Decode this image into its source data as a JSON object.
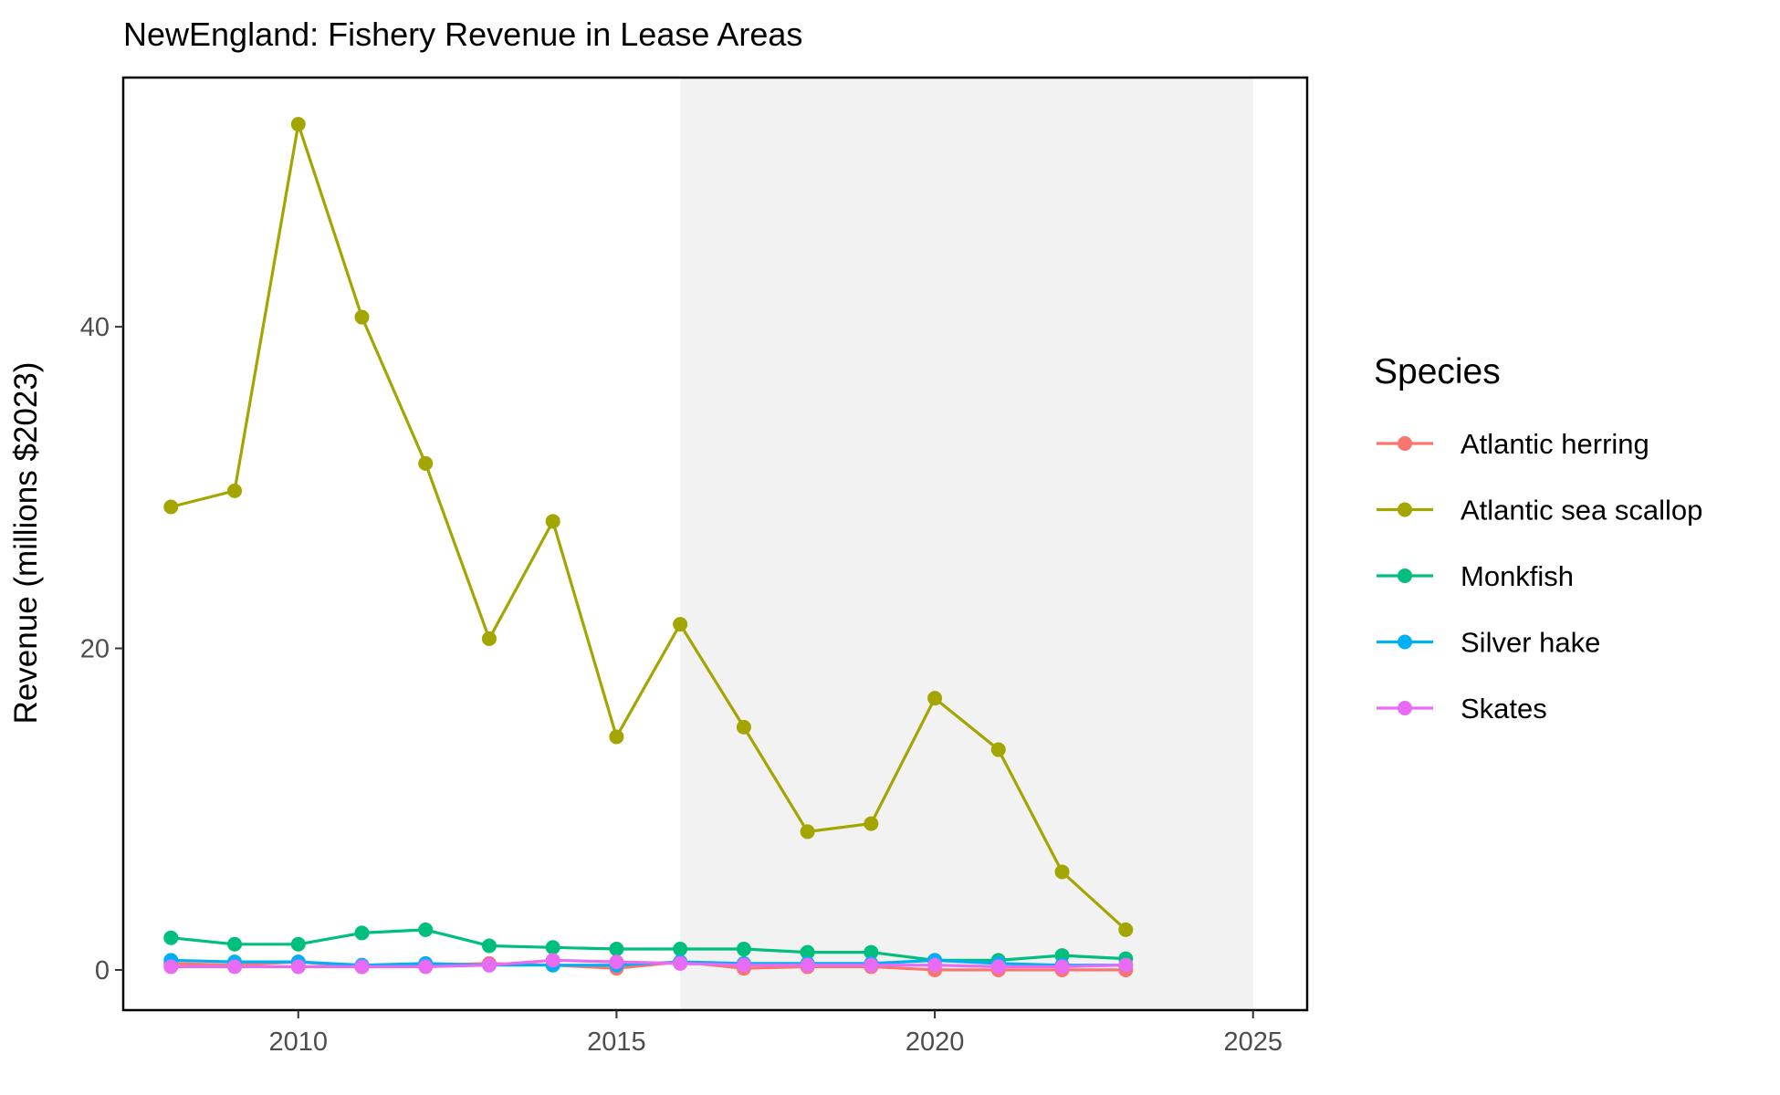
{
  "chart_data": {
    "type": "line",
    "title": "NewEngland: Fishery Revenue in Lease Areas",
    "xlabel": "",
    "ylabel": "Revenue (millions $2023)",
    "xlim": [
      2007.25,
      2025.85
    ],
    "ylim": [
      -2.5,
      55.5
    ],
    "x_ticks": [
      2010,
      2015,
      2020,
      2025
    ],
    "y_ticks": [
      0,
      20,
      40
    ],
    "shaded_region": {
      "x_start": 2016,
      "x_end": 2025,
      "color": "#f2f2f2"
    },
    "grid": false,
    "legend": {
      "title": "Species",
      "position": "right"
    },
    "x": [
      2008,
      2009,
      2010,
      2011,
      2012,
      2013,
      2014,
      2015,
      2016,
      2017,
      2018,
      2019,
      2020,
      2021,
      2022,
      2023
    ],
    "series": [
      {
        "name": "Atlantic herring",
        "color": "#F8766D",
        "values": [
          0.4,
          0.3,
          0.5,
          0.2,
          0.3,
          0.4,
          0.3,
          0.1,
          0.5,
          0.1,
          0.2,
          0.2,
          0.0,
          0.0,
          0.0,
          0.0
        ]
      },
      {
        "name": "Atlantic sea scallop",
        "color": "#A3A500",
        "values": [
          28.8,
          29.8,
          52.6,
          40.6,
          31.5,
          20.6,
          27.9,
          14.5,
          21.5,
          15.1,
          8.6,
          9.1,
          16.9,
          13.7,
          6.1,
          2.5
        ]
      },
      {
        "name": "Monkfish",
        "color": "#00BF7D",
        "values": [
          2.0,
          1.6,
          1.6,
          2.3,
          2.5,
          1.5,
          1.4,
          1.3,
          1.3,
          1.3,
          1.1,
          1.1,
          0.6,
          0.6,
          0.9,
          0.7
        ]
      },
      {
        "name": "Silver hake",
        "color": "#00B0F6",
        "values": [
          0.6,
          0.5,
          0.5,
          0.3,
          0.4,
          0.3,
          0.3,
          0.3,
          0.5,
          0.4,
          0.4,
          0.4,
          0.6,
          0.4,
          0.3,
          0.3
        ]
      },
      {
        "name": "Skates",
        "color": "#E76BF3",
        "values": [
          0.2,
          0.2,
          0.2,
          0.2,
          0.2,
          0.3,
          0.6,
          0.5,
          0.4,
          0.3,
          0.3,
          0.3,
          0.3,
          0.2,
          0.2,
          0.3
        ]
      }
    ]
  }
}
